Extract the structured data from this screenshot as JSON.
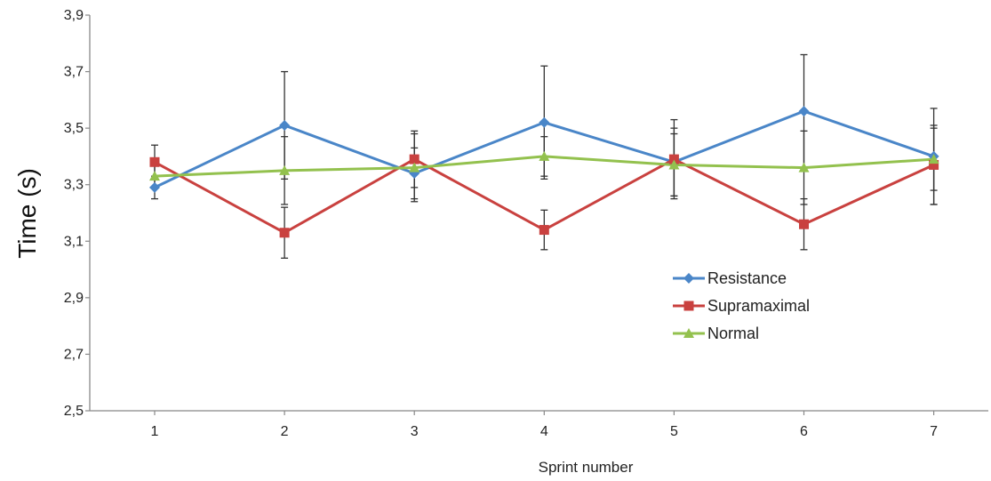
{
  "chart_data": {
    "type": "line",
    "xlabel": "Sprint number",
    "ylabel": "Time (s)",
    "categories": [
      "1",
      "2",
      "3",
      "4",
      "5",
      "6",
      "7"
    ],
    "ylim": [
      2.5,
      3.9
    ],
    "yticks": [
      "2,5",
      "2,7",
      "2,9",
      "3,1",
      "3,3",
      "3,5",
      "3,7",
      "3,9"
    ],
    "ytick_values": [
      2.5,
      2.7,
      2.9,
      3.1,
      3.3,
      3.5,
      3.7,
      3.9
    ],
    "grid": false,
    "legend_position": "right",
    "series": [
      {
        "name": "Resistance",
        "color": "#4a86c8",
        "marker": "diamond",
        "values": [
          3.29,
          3.51,
          3.34,
          3.52,
          3.38,
          3.56,
          3.4
        ],
        "error": [
          0.04,
          0.19,
          0.09,
          0.2,
          0.12,
          0.2,
          0.17
        ]
      },
      {
        "name": "Supramaximal",
        "color": "#c9413f",
        "marker": "square",
        "values": [
          3.38,
          3.13,
          3.39,
          3.14,
          3.39,
          3.16,
          3.37
        ],
        "error": [
          0.06,
          0.09,
          0.1,
          0.07,
          0.14,
          0.09,
          0.14
        ]
      },
      {
        "name": "Normal",
        "color": "#93c14e",
        "marker": "triangle",
        "values": [
          3.33,
          3.35,
          3.36,
          3.4,
          3.37,
          3.36,
          3.39
        ],
        "error": [
          0.04,
          0.12,
          0.12,
          0.07,
          0.11,
          0.13,
          0.11
        ]
      }
    ]
  }
}
